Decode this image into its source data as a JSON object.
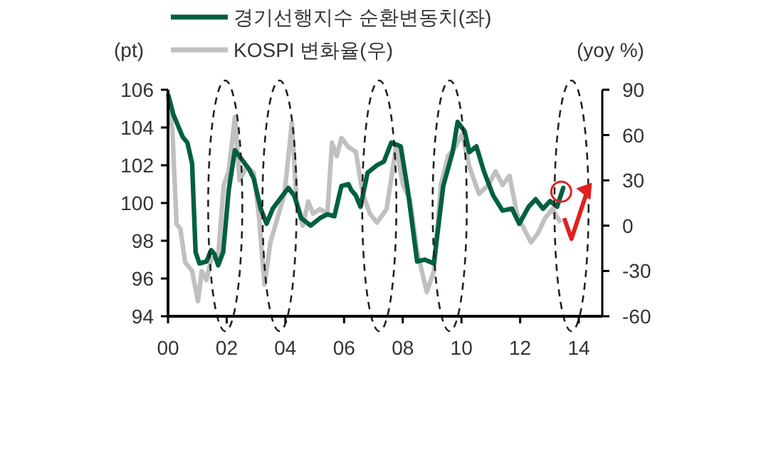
{
  "chart_data": {
    "type": "line",
    "ylabel": "(pt)",
    "y2label": "(yoy %)",
    "legend": "top left",
    "grid": false,
    "line_style": "solid",
    "xlim": [
      2000,
      2014.8
    ],
    "xticks": [
      {
        "value": 2000,
        "label": "00"
      },
      {
        "value": 2002,
        "label": "02"
      },
      {
        "value": 2004,
        "label": "04"
      },
      {
        "value": 2006,
        "label": "06"
      },
      {
        "value": 2008,
        "label": "08"
      },
      {
        "value": 2010,
        "label": "10"
      },
      {
        "value": 2012,
        "label": "12"
      },
      {
        "value": 2014,
        "label": "14"
      }
    ],
    "ylim": [
      94,
      106
    ],
    "yticks": [
      94,
      96,
      98,
      100,
      102,
      104,
      106
    ],
    "y2lim": [
      -60,
      90
    ],
    "y2ticks": [
      -60,
      -30,
      0,
      30,
      60,
      90
    ],
    "series": [
      {
        "name": "경기선행지수 순환변동치(좌)",
        "color": "#006040",
        "x": [
          2000.01,
          2000.18,
          2000.34,
          2000.5,
          2000.66,
          2000.82,
          2000.94,
          2001.07,
          2001.31,
          2001.47,
          2001.58,
          2001.71,
          2001.88,
          2002.07,
          2002.28,
          2002.52,
          2002.76,
          2002.92,
          2003.16,
          2003.36,
          2003.57,
          2003.81,
          2004.1,
          2004.3,
          2004.54,
          2004.86,
          2005.18,
          2005.43,
          2005.67,
          2005.91,
          2006.15,
          2006.24,
          2006.4,
          2006.56,
          2006.8,
          2007.12,
          2007.36,
          2007.61,
          2007.93,
          2008.17,
          2008.49,
          2008.74,
          2009.06,
          2009.38,
          2009.7,
          2009.87,
          2010.11,
          2010.27,
          2010.51,
          2010.76,
          2011.08,
          2011.4,
          2011.72,
          2011.97,
          2012.29,
          2012.53,
          2012.78,
          2013.02,
          2013.26,
          2013.47
        ],
        "values": [
          105.7,
          104.7,
          104.1,
          103.5,
          103.2,
          102.1,
          97.4,
          96.8,
          96.9,
          97.5,
          97.3,
          96.7,
          97.4,
          100.7,
          102.8,
          102.3,
          101.8,
          101.3,
          99.7,
          98.9,
          99.7,
          100.2,
          100.8,
          100.4,
          99.2,
          98.8,
          99.2,
          99.4,
          99.3,
          100.9,
          101,
          100.7,
          100.4,
          99.8,
          101.6,
          102,
          102.2,
          103.2,
          103,
          100.7,
          96.9,
          97,
          96.8,
          100.9,
          102.7,
          104.3,
          103.8,
          102.7,
          103,
          101.7,
          100.4,
          99.6,
          99.7,
          98.9,
          99.8,
          100.2,
          99.7,
          100.1,
          99.8,
          100.8
        ]
      },
      {
        "name": "KOSPI 변화율(우)",
        "color": "#c0c0c0",
        "axis": "y2",
        "x": [
          2000.01,
          2000.15,
          2000.29,
          2000.42,
          2000.58,
          2000.82,
          2001.02,
          2001.15,
          2001.31,
          2001.47,
          2001.71,
          2001.9,
          2002.07,
          2002.28,
          2002.44,
          2002.68,
          2002.92,
          2003.09,
          2003.29,
          2003.49,
          2003.73,
          2003.97,
          2004.22,
          2004.38,
          2004.59,
          2004.78,
          2004.94,
          2005.18,
          2005.43,
          2005.59,
          2005.75,
          2005.91,
          2006.15,
          2006.4,
          2006.64,
          2006.88,
          2007.12,
          2007.45,
          2007.77,
          2008.01,
          2008.25,
          2008.49,
          2008.82,
          2009.06,
          2009.3,
          2009.54,
          2009.79,
          2010.03,
          2010.27,
          2010.6,
          2010.92,
          2011.16,
          2011.4,
          2011.64,
          2011.89,
          2012.13,
          2012.37,
          2012.61,
          2012.85,
          2013.1,
          2013.34
        ],
        "values": [
          85,
          63,
          1,
          -2,
          -24,
          -30,
          -50,
          -30,
          -36,
          -22,
          -20,
          27,
          36,
          72,
          30,
          39,
          35,
          8,
          -39,
          -11,
          5,
          21,
          68,
          17,
          0,
          16,
          8,
          11,
          8,
          55,
          46,
          58,
          52,
          49,
          21,
          8,
          2,
          11,
          52,
          27,
          17,
          -17,
          -44,
          -30,
          27,
          46,
          52,
          61,
          39,
          21,
          27,
          36,
          27,
          33,
          8,
          -2,
          -11,
          -5,
          5,
          11,
          3
        ]
      }
    ]
  }
}
